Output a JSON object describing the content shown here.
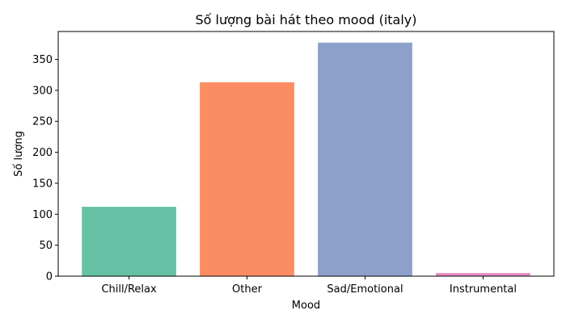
{
  "chart_data": {
    "type": "bar",
    "title": "Số lượng bài hát theo mood (italy)",
    "xlabel": "Mood",
    "ylabel": "Số lượng",
    "categories": [
      "Chill/Relax",
      "Other",
      "Sad/Emotional",
      "Instrumental"
    ],
    "values": [
      112,
      313,
      377,
      5
    ],
    "colors": [
      "#66c2a5",
      "#fc8d62",
      "#8da0cb",
      "#e78ac3"
    ],
    "ylim": [
      0,
      395
    ],
    "yticks": [
      0,
      50,
      100,
      150,
      200,
      250,
      300,
      350
    ],
    "grid": false,
    "legend": "none"
  }
}
